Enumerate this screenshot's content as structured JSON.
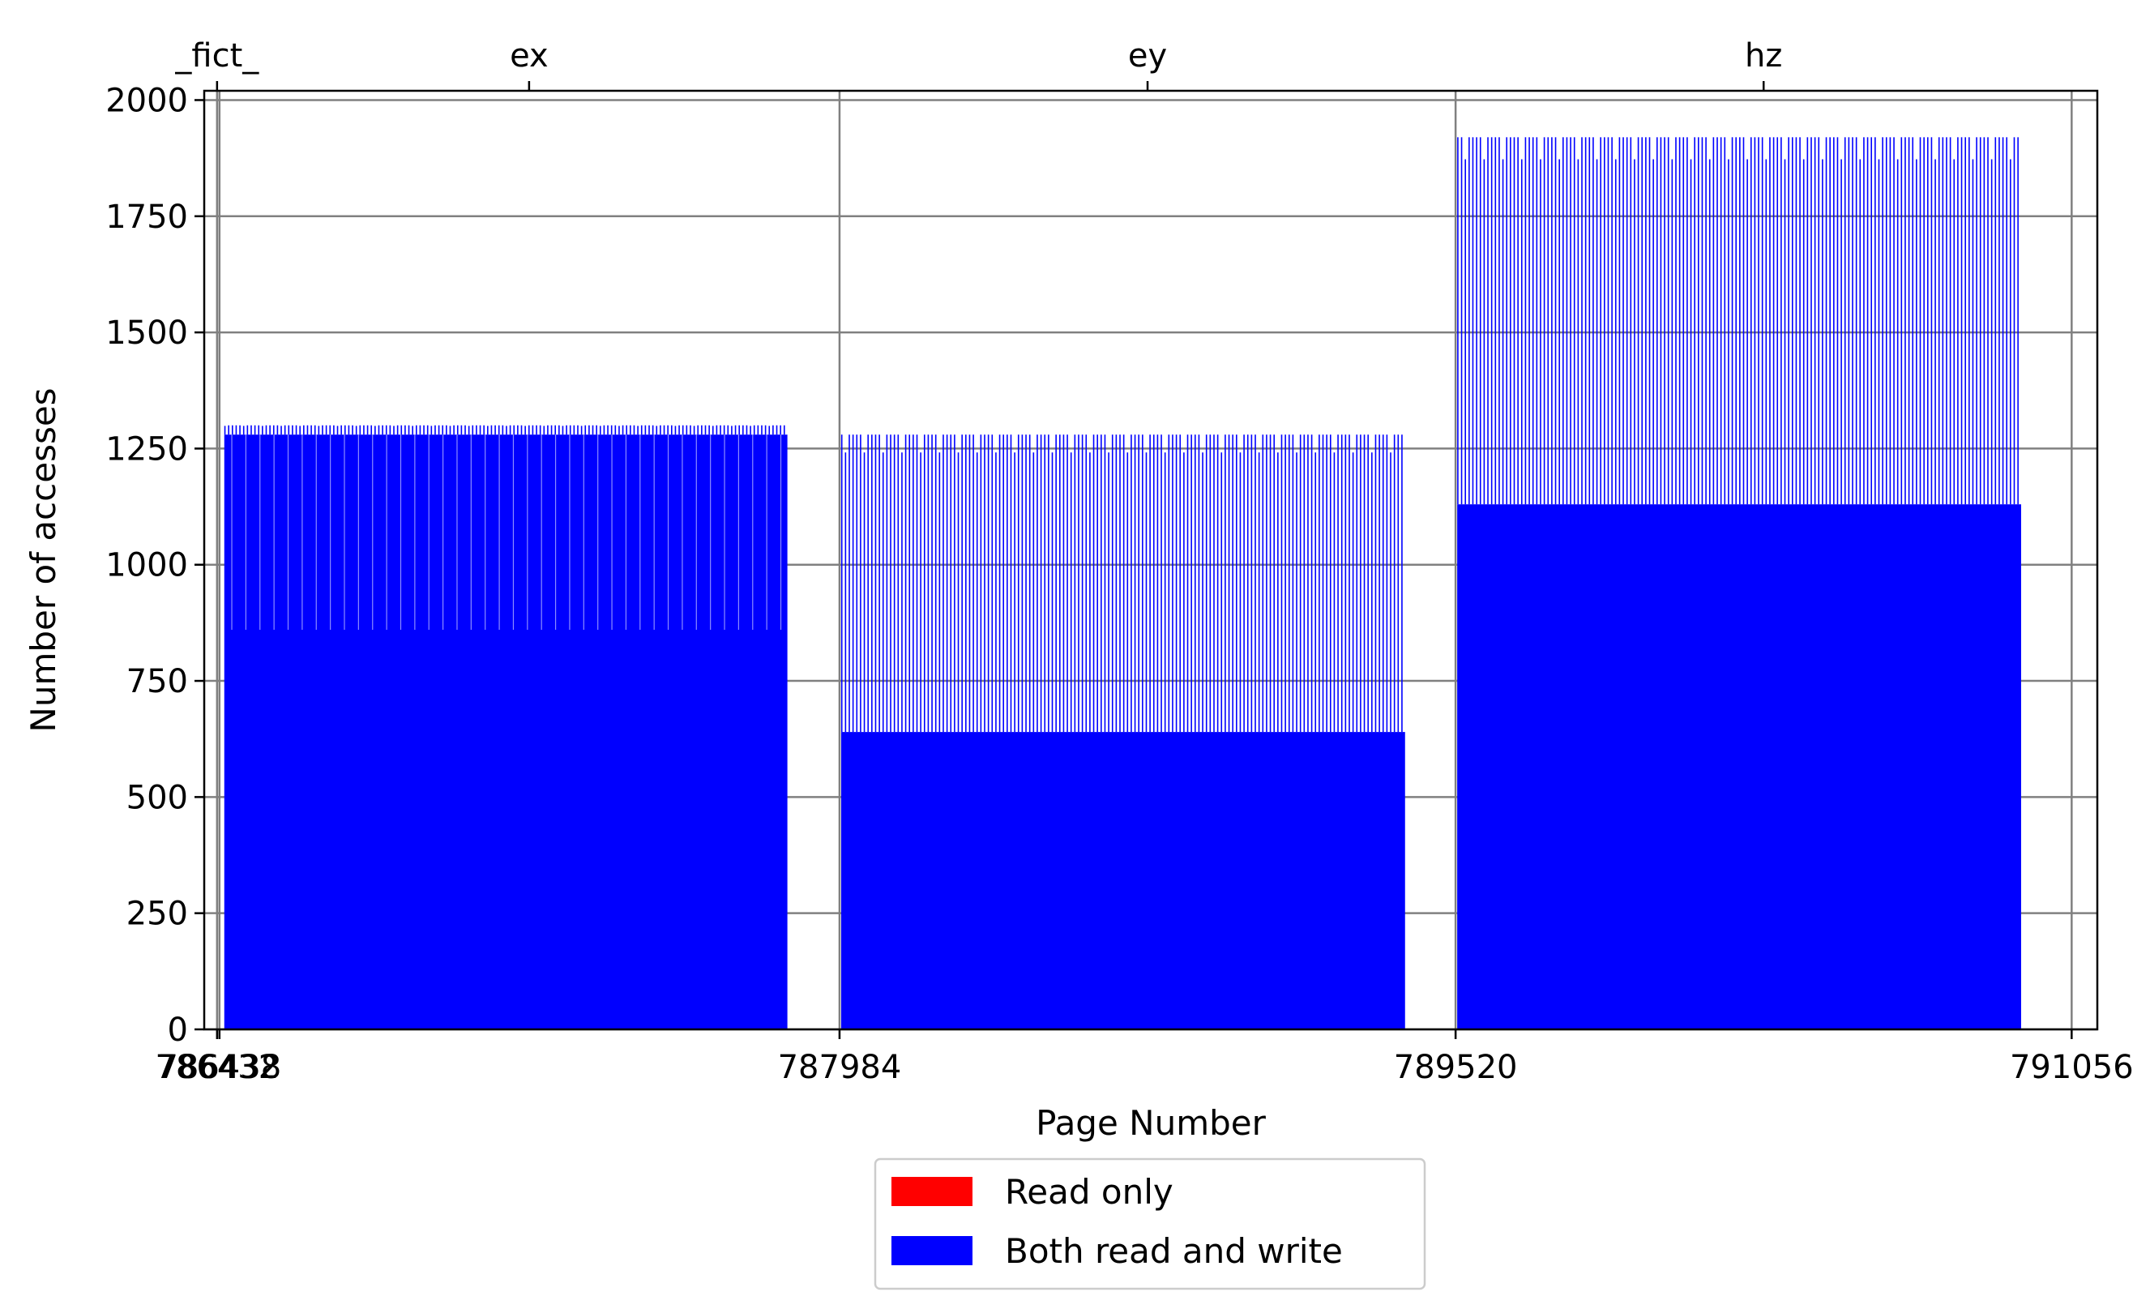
{
  "chart_data": {
    "type": "bar",
    "xlabel": "Page Number",
    "ylabel": "Number of accesses",
    "xlim": [
      786400,
      791120
    ],
    "ylim": [
      0,
      2020
    ],
    "grid": true,
    "x_ticks": [
      786432,
      786438,
      787984,
      789520,
      791056
    ],
    "x_tick_labels": [
      "786432",
      "786438",
      "787984",
      "789520",
      "791056"
    ],
    "y_ticks": [
      0,
      250,
      500,
      750,
      1000,
      1250,
      1500,
      1750,
      2000
    ],
    "y_tick_labels": [
      "0",
      "250",
      "500",
      "750",
      "1000",
      "1250",
      "1500",
      "1750",
      "2000"
    ],
    "top_ticks": [
      786432,
      787210,
      788752,
      790288
    ],
    "top_tick_labels": [
      "_fict_",
      "ex",
      "ey",
      "hz"
    ],
    "region_boundaries": [
      786432,
      786438,
      787984,
      789520,
      791056
    ],
    "legend": {
      "placement": "below",
      "entries": [
        {
          "label": "Read only",
          "color": "#ff0000"
        },
        {
          "label": "Both read and write",
          "color": "#0000ff"
        }
      ]
    },
    "series": [
      {
        "name": "Both read and write",
        "color": "#0000ff",
        "segments": [
          {
            "x_start": 786450,
            "x_end": 787854,
            "low": 1280,
            "high": 1300,
            "dip": 860
          },
          {
            "x_start": 787988,
            "x_end": 789394,
            "low": 640,
            "high": 1280,
            "dip": 640
          },
          {
            "x_start": 789524,
            "x_end": 790930,
            "low": 1130,
            "high": 1920,
            "dip": 1130
          }
        ],
        "note": ""
      },
      {
        "name": "Read only",
        "color": "#ff0000",
        "segments": []
      }
    ]
  }
}
